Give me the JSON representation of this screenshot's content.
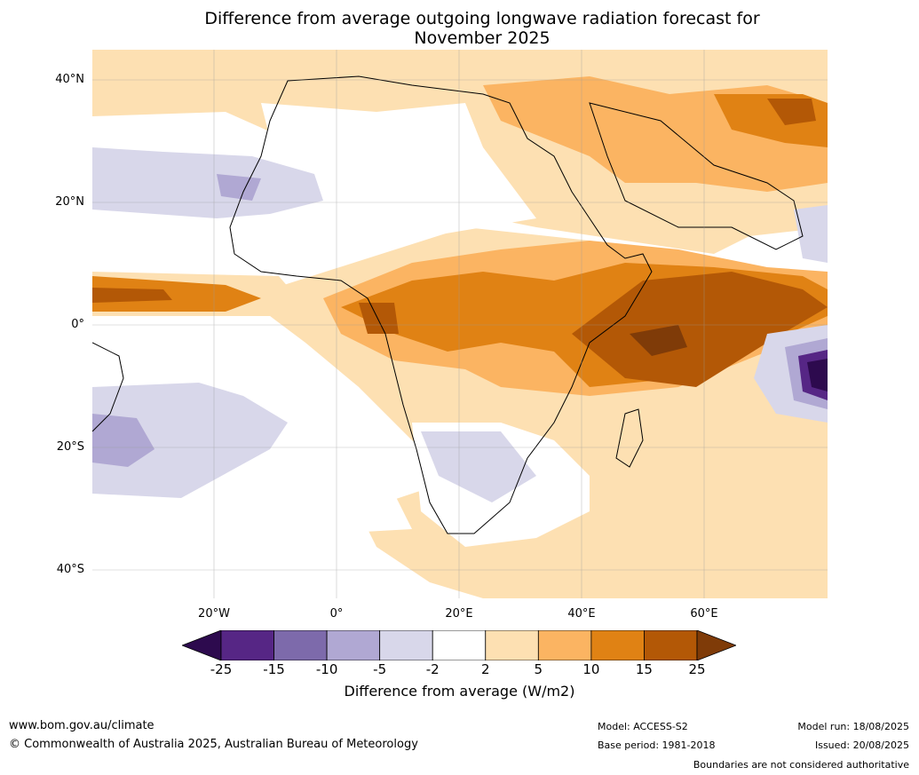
{
  "title_line1": "Difference from average outgoing longwave radiation forecast for",
  "title_line2": "November 2025",
  "lat_labels": [
    "40°N",
    "20°N",
    "0°",
    "20°S",
    "40°S"
  ],
  "lon_labels": [
    "20°W",
    "0°",
    "20°E",
    "40°E",
    "60°E"
  ],
  "colorbar": {
    "ticks": [
      "-25",
      "-15",
      "-10",
      "-5",
      "-2",
      "2",
      "5",
      "10",
      "15",
      "25"
    ],
    "title": "Difference from average (W/m2)",
    "colors": [
      "#2d0a4e",
      "#562685",
      "#7d6aab",
      "#b0a8d3",
      "#d8d7ea",
      "#ffffff",
      "#fde0b2",
      "#fbb462",
      "#e08214",
      "#b35806",
      "#7f3b08"
    ]
  },
  "footer": {
    "website": "www.bom.gov.au/climate",
    "copyright": "© Commonwealth of Australia 2025, Australian Bureau of Meteorology",
    "model": "Model: ACCESS-S2",
    "base_period": "Base period: 1981-2018",
    "model_run": "Model run: 18/08/2025",
    "issued": "Issued: 20/08/2025",
    "disclaimer": "Boundaries are not considered authoritative"
  }
}
